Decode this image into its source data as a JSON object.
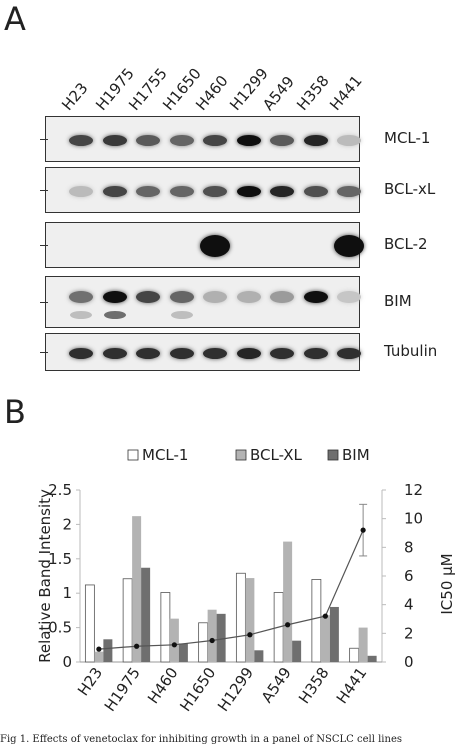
{
  "panel_a": {
    "letter": "A",
    "lanes": [
      "H23",
      "H1975",
      "H1755",
      "H1650",
      "H460",
      "H1299",
      "A549",
      "H358",
      "H441"
    ],
    "blots": [
      {
        "label": "MCL-1",
        "intensity": [
          0.75,
          0.8,
          0.65,
          0.6,
          0.75,
          1.0,
          0.65,
          0.9,
          0.2
        ]
      },
      {
        "label": "BCL-xL",
        "intensity": [
          0.2,
          0.75,
          0.6,
          0.6,
          0.7,
          1.0,
          0.9,
          0.7,
          0.6
        ]
      },
      {
        "label": "BCL-2",
        "intensity": [
          0,
          0,
          0,
          0,
          1.0,
          0,
          0,
          0,
          1.0
        ]
      },
      {
        "label": "BIM",
        "intensity": [
          0.55,
          1.0,
          0.75,
          0.6,
          0.25,
          0.25,
          0.35,
          1.0,
          0.15
        ]
      },
      {
        "label": "Tubulin",
        "intensity": [
          0.85,
          0.85,
          0.85,
          0.85,
          0.85,
          0.9,
          0.85,
          0.85,
          0.85
        ]
      }
    ]
  },
  "panel_b": {
    "letter": "B"
  },
  "caption": "Fig 1. Effects of venetoclax for inhibiting growth in a panel of NSCLC cell lines",
  "colors": {
    "mcl1": "#ffffff",
    "bclxl": "#b3b3b3",
    "bim": "#6f6f6f",
    "line": "#555555",
    "axis": "#bbbbbb"
  },
  "chart_data": {
    "type": "bar",
    "categories": [
      "H23",
      "H1975",
      "H460",
      "H1650",
      "H1299",
      "A549",
      "H358",
      "H441"
    ],
    "series": [
      {
        "name": "MCL-1",
        "values": [
          1.12,
          1.21,
          1.01,
          0.57,
          1.29,
          1.01,
          1.2,
          0.2
        ]
      },
      {
        "name": "BCL-XL",
        "values": [
          0.15,
          2.12,
          0.63,
          0.76,
          1.22,
          1.75,
          0.68,
          0.5
        ]
      },
      {
        "name": "BIM",
        "values": [
          0.33,
          1.37,
          0.27,
          0.7,
          0.17,
          0.31,
          0.8,
          0.09
        ]
      }
    ],
    "line": {
      "values": [
        0.9,
        1.1,
        1.2,
        1.5,
        1.9,
        2.6,
        3.2,
        9.2
      ],
      "error": [
        0,
        0,
        0,
        0,
        0,
        0,
        0,
        1.8
      ]
    },
    "ylabel": "Relative Band Intensity",
    "y2label": "IC50 µM",
    "ylim": [
      0,
      2.5
    ],
    "y2lim": [
      0,
      12
    ],
    "yticks": [
      "0",
      "0.5",
      "1",
      "1.5",
      "2",
      "2.5"
    ],
    "y2ticks": [
      "0",
      "2",
      "4",
      "6",
      "8",
      "10",
      "12"
    ],
    "legend_position": "top"
  }
}
